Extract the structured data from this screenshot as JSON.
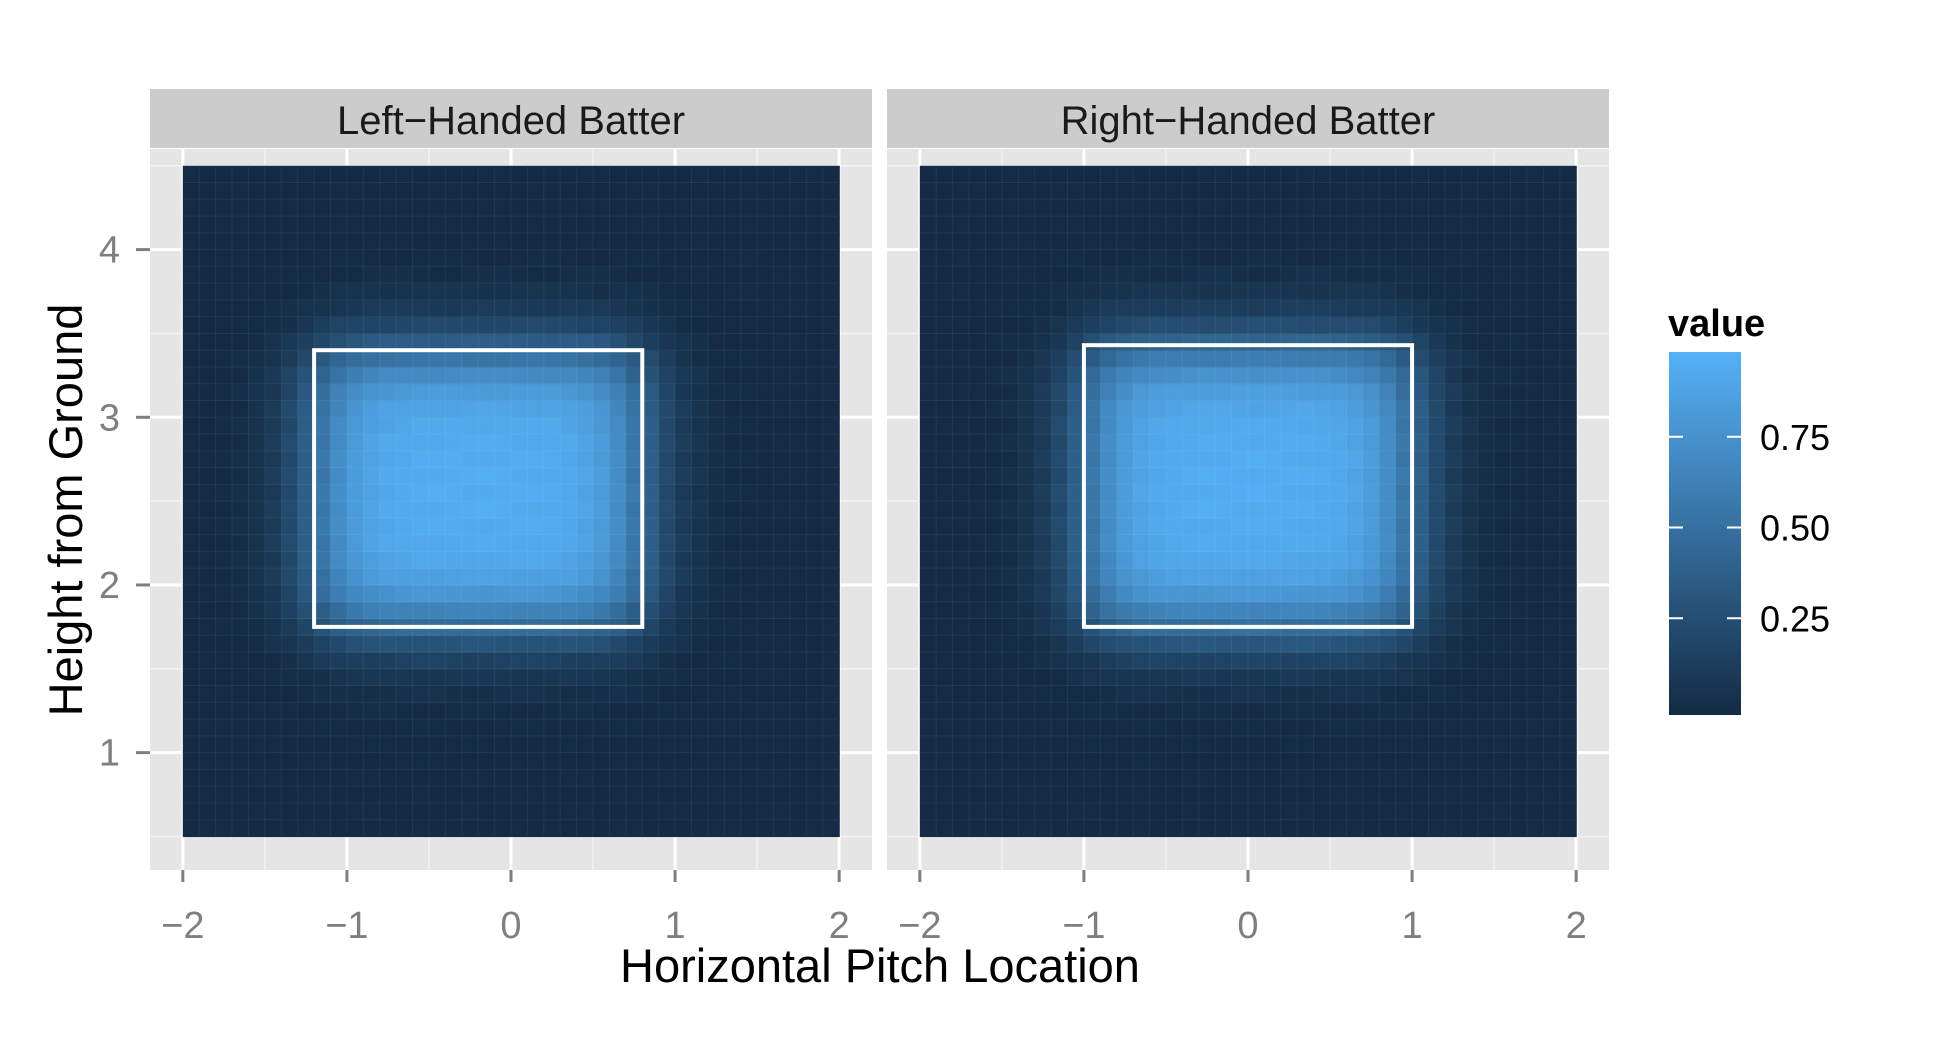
{
  "chart_data": {
    "type": "heatmap",
    "title": "",
    "xlabel": "Horizontal Pitch Location",
    "ylabel": "Height from Ground",
    "xlim": [
      -2.2,
      2.2
    ],
    "ylim": [
      0.3,
      4.6
    ],
    "x_ticks": [
      -2,
      -1,
      0,
      1,
      2
    ],
    "x_tick_labels": [
      "−2",
      "−1",
      "0",
      "1",
      "2"
    ],
    "y_ticks": [
      1,
      2,
      3,
      4
    ],
    "y_tick_labels": [
      "1",
      "2",
      "3",
      "4"
    ],
    "grid": true,
    "tile_range": {
      "x": [
        -2,
        2
      ],
      "y": [
        0.5,
        4.5
      ]
    },
    "legend": {
      "title": "value",
      "placement": "right",
      "breaks": [
        0.75,
        0.5,
        0.25
      ],
      "break_labels": [
        "0.75",
        "0.50",
        "0.25"
      ],
      "range": [
        0,
        1
      ],
      "color_low": "#132b43",
      "color_high": "#56b1f7"
    },
    "panels": [
      {
        "label": "Left−Handed Batter",
        "strike_zone": {
          "x0": -1.2,
          "x1": 0.8,
          "y0": 1.75,
          "y1": 3.4
        },
        "center_x": -0.2,
        "center_y": 2.57,
        "half_width": 1.0,
        "half_height": 0.82,
        "peak": 0.97
      },
      {
        "label": "Right−Handed Batter",
        "strike_zone": {
          "x0": -1.0,
          "x1": 1.0,
          "y0": 1.75,
          "y1": 3.43
        },
        "center_x": 0.0,
        "center_y": 2.58,
        "half_width": 1.0,
        "half_height": 0.84,
        "peak": 0.97
      }
    ]
  }
}
